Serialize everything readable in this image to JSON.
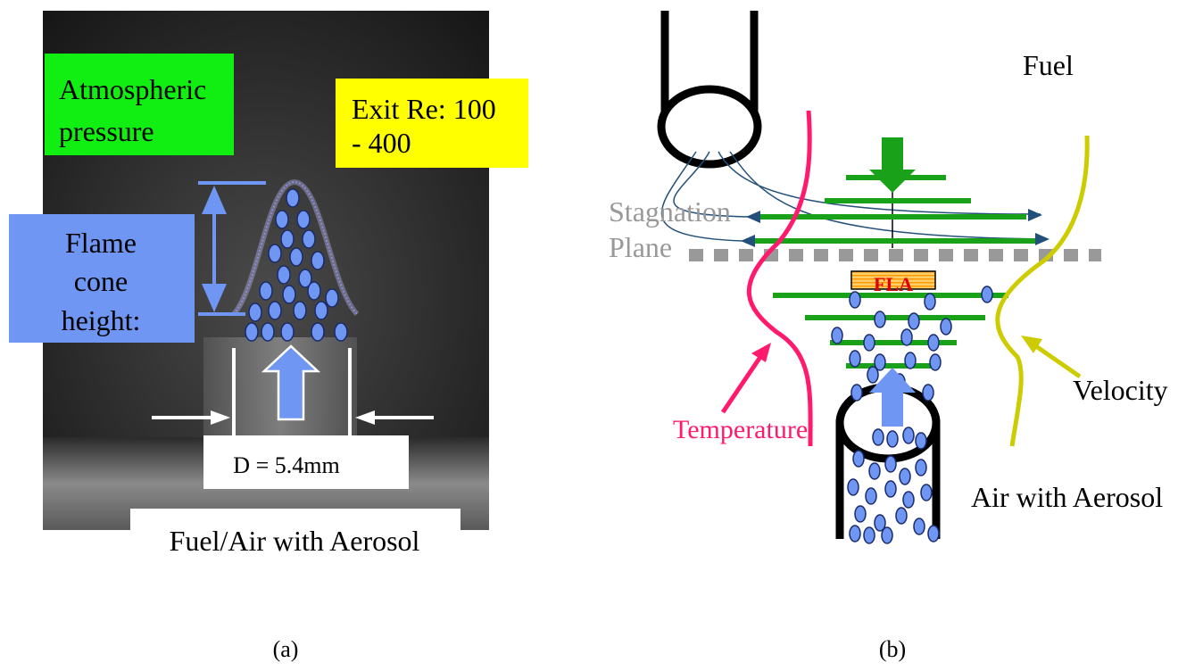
{
  "panel_a": {
    "caption": "(a)",
    "label_pressure_line1": "Atmospheric",
    "label_pressure_line2": "pressure",
    "label_exit_re_line1": "Exit Re: 100",
    "label_exit_re_line2": "- 400",
    "label_flame_line1": "Flame",
    "label_flame_line2": "cone",
    "label_flame_line3": "height:",
    "label_diameter": "D = 5.4mm",
    "label_bottom": "Fuel/Air with Aerosol"
  },
  "panel_b": {
    "caption": "(b)",
    "label_fuel": "Fuel",
    "label_stagnation_line1": "Stagnation",
    "label_stagnation_line2": "Plane",
    "label_flame_tag": "FLA",
    "label_velocity": "Velocity",
    "label_temperature": "Temperature",
    "label_air": "Air with Aerosol"
  },
  "colors": {
    "green_box": "#11ee11",
    "yellow_box": "#ffff00",
    "blue_box": "#6e96f2",
    "droplet": "#6e96f2",
    "streamline_green": "#1aa11a",
    "temperature": "#ff1a6e",
    "velocity": "#cccc00",
    "stagnation": "#999999"
  }
}
